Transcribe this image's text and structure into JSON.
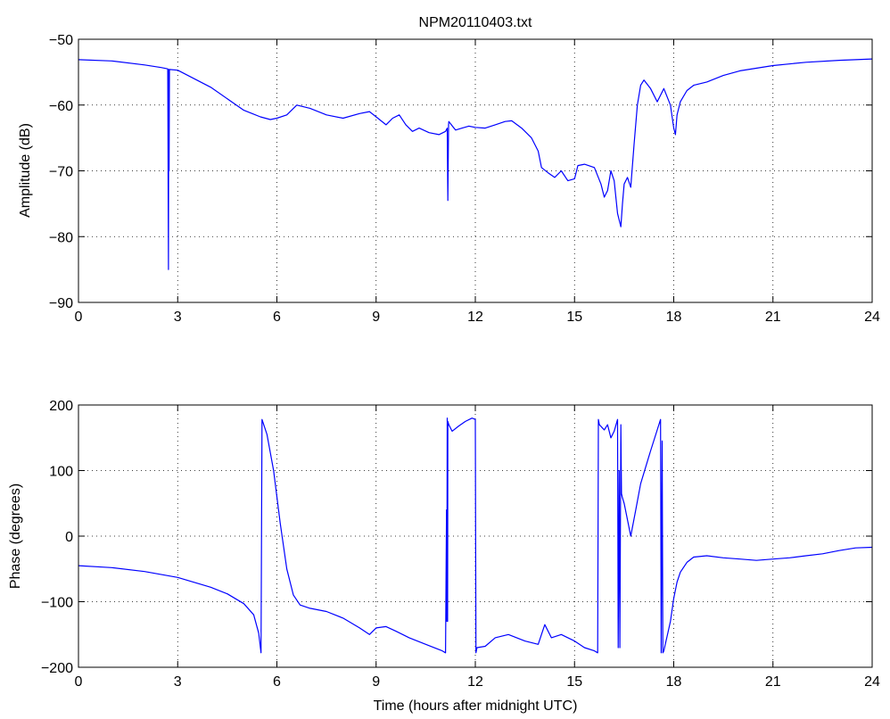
{
  "chart_data": [
    {
      "type": "line",
      "title": "NPM20110403.txt",
      "xlabel": "",
      "ylabel": "Amplitude (dB)",
      "xlim": [
        0,
        24
      ],
      "ylim": [
        -90,
        -50
      ],
      "xticks": [
        0,
        3,
        6,
        9,
        12,
        15,
        18,
        21,
        24
      ],
      "yticks": [
        -90,
        -80,
        -70,
        -60,
        -50
      ],
      "xtick_labels": [
        "0",
        "3",
        "6",
        "9",
        "12",
        "15",
        "18",
        "21",
        "24"
      ],
      "ytick_labels": [
        "−90",
        "−80",
        "−70",
        "−60",
        "−50"
      ],
      "grid": "dotted",
      "series": [
        {
          "color": "#0000ff",
          "x": [
            0,
            1,
            2,
            2.5,
            2.7,
            2.72,
            2.73,
            2.74,
            2.75,
            3.0,
            4.0,
            5.0,
            5.5,
            5.8,
            6.0,
            6.3,
            6.6,
            7.0,
            7.5,
            8.0,
            8.5,
            8.8,
            9.0,
            9.3,
            9.5,
            9.7,
            9.9,
            10.1,
            10.3,
            10.6,
            10.9,
            11.1,
            11.15,
            11.17,
            11.19,
            11.2,
            11.4,
            11.6,
            11.8,
            12.0,
            12.3,
            12.6,
            12.9,
            13.1,
            13.4,
            13.7,
            13.9,
            14.0,
            14.2,
            14.4,
            14.6,
            14.8,
            15.0,
            15.1,
            15.3,
            15.6,
            15.8,
            15.9,
            16.0,
            16.1,
            16.2,
            16.3,
            16.4,
            16.45,
            16.5,
            16.6,
            16.7,
            16.8,
            16.9,
            17.0,
            17.1,
            17.3,
            17.5,
            17.7,
            17.9,
            18.0,
            18.05,
            18.1,
            18.2,
            18.4,
            18.6,
            19.0,
            19.5,
            20.0,
            21.0,
            22.0,
            23.0,
            24.0
          ],
          "y": [
            -53.1,
            -53.3,
            -53.9,
            -54.3,
            -54.5,
            -85.0,
            -54.6,
            -70.0,
            -54.6,
            -54.7,
            -57.3,
            -60.8,
            -61.8,
            -62.2,
            -62.0,
            -61.5,
            -60.0,
            -60.5,
            -61.5,
            -62.0,
            -61.3,
            -61.0,
            -61.8,
            -63.0,
            -62.0,
            -61.5,
            -63.0,
            -64.0,
            -63.5,
            -64.2,
            -64.5,
            -64.0,
            -63.5,
            -74.5,
            -63.0,
            -62.5,
            -63.8,
            -63.5,
            -63.2,
            -63.4,
            -63.5,
            -63.0,
            -62.5,
            -62.4,
            -63.5,
            -65.0,
            -67.0,
            -69.5,
            -70.3,
            -71.0,
            -70.0,
            -71.5,
            -71.2,
            -69.2,
            -69.0,
            -69.5,
            -72.0,
            -74.0,
            -73.0,
            -70.0,
            -71.5,
            -76.5,
            -78.5,
            -75.0,
            -72.0,
            -71.0,
            -72.5,
            -66.0,
            -60.0,
            -57.0,
            -56.2,
            -57.5,
            -59.5,
            -57.5,
            -60.0,
            -63.5,
            -64.5,
            -61.5,
            -59.5,
            -57.8,
            -57.0,
            -56.5,
            -55.5,
            -54.8,
            -54.0,
            -53.5,
            -53.2,
            -53.0
          ]
        }
      ]
    },
    {
      "type": "line",
      "title": "",
      "xlabel": "Time (hours after midnight UTC)",
      "ylabel": "Phase (degrees)",
      "xlim": [
        0,
        24
      ],
      "ylim": [
        -200,
        200
      ],
      "xticks": [
        0,
        3,
        6,
        9,
        12,
        15,
        18,
        21,
        24
      ],
      "yticks": [
        -200,
        -100,
        0,
        100,
        200
      ],
      "xtick_labels": [
        "0",
        "3",
        "6",
        "9",
        "12",
        "15",
        "18",
        "21",
        "24"
      ],
      "ytick_labels": [
        "−200",
        "−100",
        "0",
        "100",
        "200"
      ],
      "grid": "dotted",
      "series": [
        {
          "color": "#0000ff",
          "x": [
            0,
            1,
            2,
            3,
            4,
            4.5,
            5.0,
            5.3,
            5.45,
            5.52,
            5.55,
            5.7,
            5.9,
            6.1,
            6.3,
            6.5,
            6.7,
            7.0,
            7.5,
            8.0,
            8.5,
            8.8,
            9.0,
            9.3,
            9.6,
            10.0,
            10.5,
            11.0,
            11.1,
            11.13,
            11.14,
            11.15,
            11.16,
            11.17,
            11.2,
            11.3,
            11.5,
            11.7,
            11.9,
            12.0,
            12.02,
            12.05,
            12.3,
            12.6,
            13.0,
            13.5,
            13.9,
            14.1,
            14.3,
            14.6,
            15.0,
            15.3,
            15.6,
            15.7,
            15.72,
            15.75,
            15.9,
            16.0,
            16.1,
            16.2,
            16.3,
            16.32,
            16.35,
            16.37,
            16.4,
            16.42,
            16.44,
            16.5,
            16.7,
            16.85,
            17.0,
            17.3,
            17.6,
            17.62,
            17.65,
            17.67,
            17.7,
            17.9,
            18.0,
            18.1,
            18.2,
            18.4,
            18.6,
            19.0,
            19.5,
            20.0,
            20.5,
            21.0,
            21.5,
            22.0,
            22.5,
            23.0,
            23.5,
            24.0
          ],
          "y": [
            -45,
            -48,
            -54,
            -63,
            -78,
            -88,
            -103,
            -120,
            -148,
            -178,
            178,
            155,
            100,
            20,
            -50,
            -90,
            -105,
            -110,
            -115,
            -125,
            -140,
            -150,
            -140,
            -138,
            -145,
            -155,
            -165,
            -175,
            -178,
            40,
            -130,
            180,
            -130,
            175,
            170,
            160,
            168,
            175,
            180,
            178,
            -178,
            -170,
            -168,
            -155,
            -150,
            -160,
            -165,
            -135,
            -155,
            -150,
            -160,
            -170,
            -175,
            -178,
            178,
            170,
            162,
            170,
            150,
            160,
            178,
            -170,
            100,
            -170,
            170,
            65,
            60,
            50,
            0,
            40,
            80,
            130,
            178,
            -178,
            145,
            -178,
            -175,
            -130,
            -95,
            -70,
            -55,
            -40,
            -32,
            -30,
            -33,
            -35,
            -37,
            -35,
            -33,
            -30,
            -27,
            -22,
            -18,
            -17
          ]
        }
      ]
    }
  ]
}
